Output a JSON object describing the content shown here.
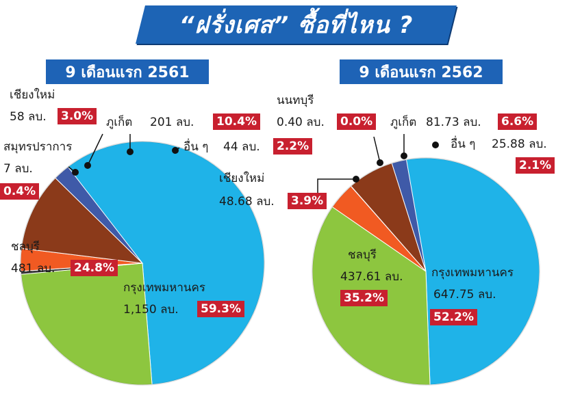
{
  "title": "“ฝรั่งเศส” ซื้อที่ไหน ?",
  "colors": {
    "bangkok": "#1fb3e8",
    "chonburi": "#8dc63f",
    "samutprakan": "#3a3a3a",
    "chiangmai": "#f15a22",
    "phuket": "#8b3a1a",
    "others": "#3f5aa8",
    "nonthaburi": "#3a3a3a",
    "badge": "#c8202f",
    "banner": "#1d64b5"
  },
  "chart_data": [
    {
      "type": "pie",
      "title": "9 เดือนแรก 2561",
      "slices": [
        {
          "key": "bangkok",
          "name": "กรุงเทพมหานคร",
          "value": "1,150 ลบ.",
          "percent": "59.3%",
          "pct": 59.3
        },
        {
          "key": "chonburi",
          "name": "ชลบุรี",
          "value": "481 ลบ.",
          "percent": "24.8%",
          "pct": 24.8
        },
        {
          "key": "samutprakan",
          "name": "สมุทรปราการ",
          "value": "7 ลบ.",
          "percent": "0.4%",
          "pct": 0.4
        },
        {
          "key": "chiangmai",
          "name": "เชียงใหม่",
          "value": "58 ลบ.",
          "percent": "3.0%",
          "pct": 3.0
        },
        {
          "key": "phuket",
          "name": "ภูเก็ต",
          "value": "201 ลบ.",
          "percent": "10.4%",
          "pct": 10.4
        },
        {
          "key": "others",
          "name": "อื่น ๆ",
          "value": "44 ลบ.",
          "percent": "2.2%",
          "pct": 2.2
        }
      ]
    },
    {
      "type": "pie",
      "title": "9 เดือนแรก 2562",
      "slices": [
        {
          "key": "bangkok",
          "name": "กรุงเทพมหานคร",
          "value": "647.75 ลบ.",
          "percent": "52.2%",
          "pct": 52.2
        },
        {
          "key": "chonburi",
          "name": "ชลบุรี",
          "value": "437.61 ลบ.",
          "percent": "35.2%",
          "pct": 35.2
        },
        {
          "key": "chiangmai",
          "name": "เชียงใหม่",
          "value": "48.68 ลบ.",
          "percent": "3.9%",
          "pct": 3.9
        },
        {
          "key": "nonthaburi",
          "name": "นนทบุรี",
          "value": "0.40 ลบ.",
          "percent": "0.0%",
          "pct": 0.03
        },
        {
          "key": "phuket",
          "name": "ภูเก็ต",
          "value": "81.73 ลบ.",
          "percent": "6.6%",
          "pct": 6.6
        },
        {
          "key": "others",
          "name": "อื่น ๆ",
          "value": "25.88 ลบ.",
          "percent": "2.1%",
          "pct": 2.1
        }
      ]
    }
  ]
}
